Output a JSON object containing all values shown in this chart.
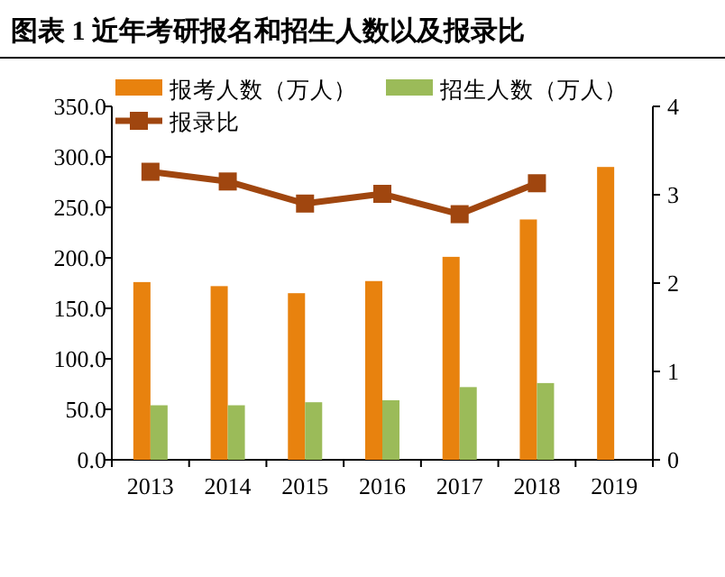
{
  "chart_data": {
    "type": "bar",
    "title": "图表 1   近年考研报名和招生人数以及报录比",
    "categories": [
      "2013",
      "2014",
      "2015",
      "2016",
      "2017",
      "2018",
      "2019"
    ],
    "series": [
      {
        "name": "报考人数（万人）",
        "color": "#e8820e",
        "values": [
          176,
          172,
          165,
          177,
          201,
          238,
          290
        ]
      },
      {
        "name": "招生人数（万人）",
        "color": "#9bbb59",
        "values": [
          54,
          54,
          57,
          59,
          72,
          76,
          null
        ]
      },
      {
        "name": "报录比",
        "type": "line",
        "axis": "y2",
        "color": "#a0460f",
        "marker": "square",
        "values": [
          3.26,
          3.15,
          2.9,
          3.01,
          2.78,
          3.13,
          null
        ]
      }
    ],
    "ylim": [
      0,
      350
    ],
    "yticks": [
      {
        "value": 0,
        "label": "0.0"
      },
      {
        "value": 50,
        "label": "50.0"
      },
      {
        "value": 100,
        "label": "100.0"
      },
      {
        "value": 150,
        "label": "150.0"
      },
      {
        "value": 200,
        "label": "200.0"
      },
      {
        "value": 250,
        "label": "250.0"
      },
      {
        "value": 300,
        "label": "300.0"
      },
      {
        "value": 350,
        "label": "350.0"
      }
    ],
    "y2lim": [
      0,
      4
    ],
    "y2ticks": [
      0,
      1,
      2,
      3,
      4
    ],
    "legend": "top left",
    "grid": false
  }
}
